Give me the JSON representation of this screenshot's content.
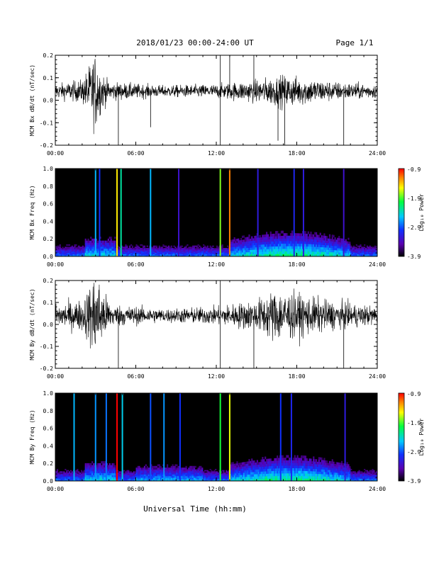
{
  "header": {
    "title": "2018/01/23  00:00-24:00 UT",
    "page": "Page 1/1"
  },
  "footer": {
    "xlabel": "Universal Time (hh:mm)"
  },
  "colorbar": {
    "label": "Log₁₀ Power",
    "ticks": [
      "-0.9",
      "-1.9",
      "-2.9",
      "-3.9"
    ],
    "colors": [
      "#000000",
      "#5a00b0",
      "#1030ff",
      "#00c8ff",
      "#00ff40",
      "#ffff00",
      "#ff8000",
      "#ff0000"
    ]
  },
  "chart_data": [
    {
      "type": "line",
      "panel": "Bx time series",
      "ylabel": "MCM Bx dB/dt (nT/sec)",
      "xlim": [
        0,
        24
      ],
      "ylim": [
        -0.2,
        0.2
      ],
      "xticks": [
        "00:00",
        "06:00",
        "12:00",
        "18:00",
        "24:00"
      ],
      "yticks": [
        "0.2",
        "0.1",
        "0.0",
        "-0.1",
        "-0.2"
      ],
      "baseline": 0.04,
      "noise_envelope": [
        {
          "x": 0,
          "amp": 0.03
        },
        {
          "x": 2,
          "amp": 0.05
        },
        {
          "x": 2.6,
          "amp": 0.12
        },
        {
          "x": 3.0,
          "amp": 0.17
        },
        {
          "x": 3.4,
          "amp": 0.09
        },
        {
          "x": 4,
          "amp": 0.04
        },
        {
          "x": 8,
          "amp": 0.025
        },
        {
          "x": 12,
          "amp": 0.03
        },
        {
          "x": 15,
          "amp": 0.05
        },
        {
          "x": 17,
          "amp": 0.07
        },
        {
          "x": 18.5,
          "amp": 0.06
        },
        {
          "x": 21,
          "amp": 0.04
        },
        {
          "x": 24,
          "amp": 0.03
        }
      ],
      "spikes": [
        {
          "x": 4.7,
          "y": -0.2
        },
        {
          "x": 7.1,
          "y": -0.12
        },
        {
          "x": 12.3,
          "y": -0.2
        },
        {
          "x": 12.3,
          "y": 0.2
        },
        {
          "x": 13.0,
          "y": 0.2
        },
        {
          "x": 14.8,
          "y": 0.2
        },
        {
          "x": 16.6,
          "y": -0.18
        },
        {
          "x": 17.1,
          "y": -0.2
        },
        {
          "x": 21.5,
          "y": -0.2
        }
      ]
    },
    {
      "type": "heatmap",
      "panel": "Bx spectrogram",
      "ylabel": "MCM Bx Freq (Hz)",
      "xlim": [
        0,
        24
      ],
      "ylim": [
        0,
        1.0
      ],
      "xticks": [
        "00:00",
        "06:00",
        "12:00",
        "18:00",
        "24:00"
      ],
      "yticks": [
        "1.0",
        "0.8",
        "0.6",
        "0.4",
        "0.2",
        "0.0"
      ],
      "zlim": [
        -3.9,
        -0.9
      ],
      "lines": [
        {
          "x": 3.0,
          "z": -2.6
        },
        {
          "x": 3.3,
          "z": -3.0
        },
        {
          "x": 4.6,
          "z": -1.5
        },
        {
          "x": 4.9,
          "z": -2.3
        },
        {
          "x": 7.1,
          "z": -2.6
        },
        {
          "x": 9.2,
          "z": -3.3
        },
        {
          "x": 12.3,
          "z": -1.8
        },
        {
          "x": 13.0,
          "z": -1.2
        },
        {
          "x": 15.1,
          "z": -3.2
        },
        {
          "x": 17.8,
          "z": -3.1
        },
        {
          "x": 18.5,
          "z": -3.2
        },
        {
          "x": 21.5,
          "z": -3.3
        }
      ]
    },
    {
      "type": "line",
      "panel": "By time series",
      "ylabel": "MCM By dB/dt (nT/sec)",
      "xlim": [
        0,
        24
      ],
      "ylim": [
        -0.2,
        0.2
      ],
      "xticks": [
        "00:00",
        "06:00",
        "12:00",
        "18:00",
        "24:00"
      ],
      "yticks": [
        "0.2",
        "0.1",
        "0.0",
        "-0.1",
        "-0.2"
      ],
      "baseline": 0.04,
      "noise_envelope": [
        {
          "x": 0,
          "amp": 0.05
        },
        {
          "x": 2,
          "amp": 0.07
        },
        {
          "x": 2.6,
          "amp": 0.14
        },
        {
          "x": 3.0,
          "amp": 0.2
        },
        {
          "x": 3.5,
          "amp": 0.12
        },
        {
          "x": 4.2,
          "amp": 0.05
        },
        {
          "x": 8,
          "amp": 0.03
        },
        {
          "x": 12,
          "amp": 0.04
        },
        {
          "x": 15,
          "amp": 0.07
        },
        {
          "x": 16.5,
          "amp": 0.12
        },
        {
          "x": 18.5,
          "amp": 0.09
        },
        {
          "x": 21,
          "amp": 0.06
        },
        {
          "x": 24,
          "amp": 0.04
        }
      ],
      "spikes": [
        {
          "x": 4.7,
          "y": -0.2
        },
        {
          "x": 12.3,
          "y": -0.2
        },
        {
          "x": 12.3,
          "y": 0.2
        },
        {
          "x": 14.8,
          "y": -0.2
        },
        {
          "x": 21.5,
          "y": -0.2
        }
      ]
    },
    {
      "type": "heatmap",
      "panel": "By spectrogram",
      "ylabel": "MCM By Freq (Hz)",
      "xlim": [
        0,
        24
      ],
      "ylim": [
        0,
        1.0
      ],
      "xticks": [
        "00:00",
        "06:00",
        "12:00",
        "18:00",
        "24:00"
      ],
      "yticks": [
        "1.0",
        "0.8",
        "0.6",
        "0.4",
        "0.2",
        "0.0"
      ],
      "zlim": [
        -3.9,
        -0.9
      ],
      "lines": [
        {
          "x": 1.4,
          "z": -2.6
        },
        {
          "x": 3.0,
          "z": -2.7
        },
        {
          "x": 3.8,
          "z": -2.8
        },
        {
          "x": 4.6,
          "z": -0.9
        },
        {
          "x": 5.0,
          "z": -2.5
        },
        {
          "x": 7.1,
          "z": -2.9
        },
        {
          "x": 8.1,
          "z": -2.7
        },
        {
          "x": 9.3,
          "z": -3.0
        },
        {
          "x": 12.3,
          "z": -2.0
        },
        {
          "x": 13.0,
          "z": -1.6
        },
        {
          "x": 16.8,
          "z": -3.0
        },
        {
          "x": 17.6,
          "z": -3.1
        },
        {
          "x": 21.6,
          "z": -3.2
        }
      ]
    }
  ]
}
